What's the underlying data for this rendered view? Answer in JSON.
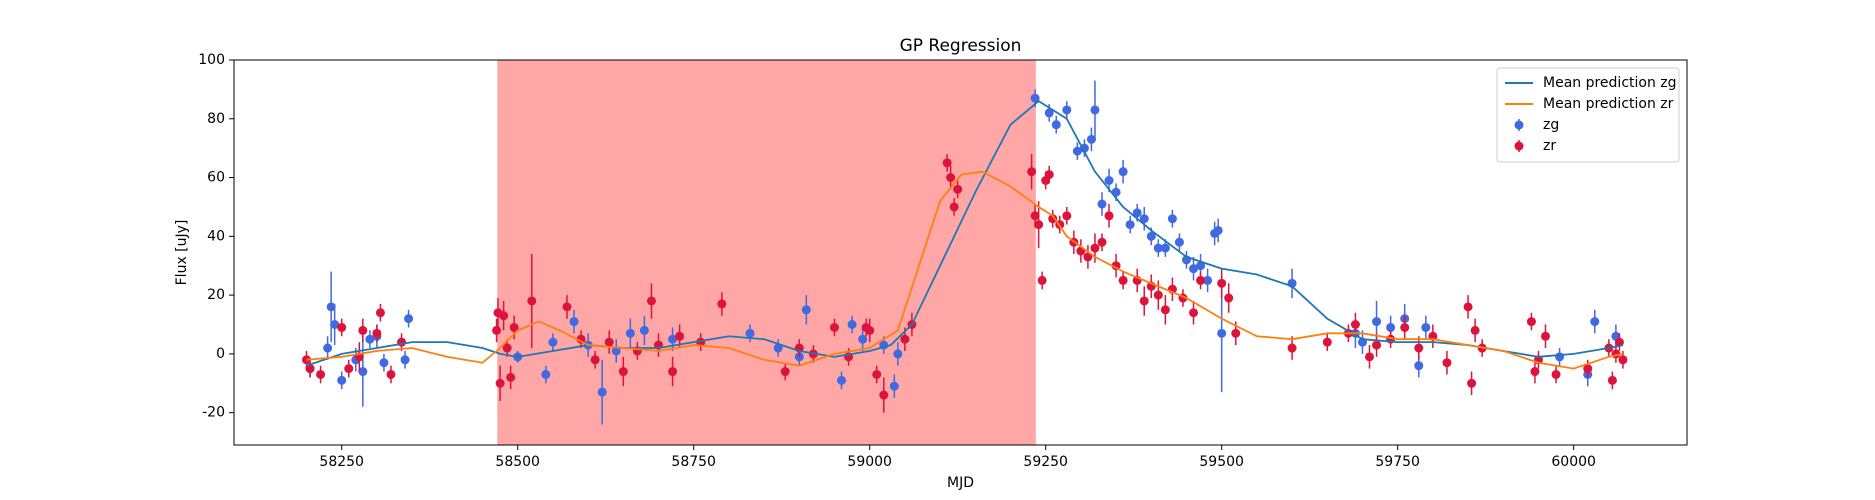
{
  "chart_data": {
    "type": "gp_regression",
    "title": "GP Regression",
    "x_label": "MJD",
    "y_label": "Flux [uJy]",
    "xlim": [
      58097,
      60161
    ],
    "ylim": [
      -31,
      100
    ],
    "xticks": [
      58250,
      58500,
      58750,
      59000,
      59250,
      59500,
      59750,
      60000
    ],
    "yticks": [
      -20,
      0,
      20,
      40,
      60,
      80,
      100
    ],
    "legend": "upper right",
    "shaded_region": {
      "x": [
        58471,
        59236
      ],
      "color": "#ff0000",
      "opacity": 0.35
    },
    "series": [
      {
        "name": "Mean prediction zg",
        "type": "line",
        "color": "#1f77b4",
        "x": [
          58200,
          58250,
          58300,
          58350,
          58400,
          58450,
          58475,
          58500,
          58550,
          58600,
          58650,
          58700,
          58750,
          58800,
          58850,
          58900,
          58950,
          59000,
          59030,
          59060,
          59100,
          59150,
          59200,
          59240,
          59280,
          59320,
          59360,
          59400,
          59450,
          59500,
          59550,
          59600,
          59650,
          59700,
          59750,
          59800,
          59850,
          59900,
          59950,
          60000,
          60050,
          60070
        ],
        "values": [
          -4,
          0,
          2,
          4,
          4,
          2,
          0,
          -1,
          1,
          3,
          2,
          2,
          4,
          6,
          5,
          1,
          -1,
          1,
          3,
          10,
          30,
          55,
          78,
          86,
          80,
          62,
          50,
          42,
          33,
          29,
          27,
          23,
          12,
          5,
          4,
          4,
          3,
          1,
          -1,
          0,
          2,
          3
        ]
      },
      {
        "name": "Mean prediction zr",
        "type": "line",
        "color": "#ff7f0e",
        "x": [
          58200,
          58250,
          58300,
          58350,
          58400,
          58450,
          58475,
          58500,
          58530,
          58560,
          58600,
          58650,
          58700,
          58750,
          58800,
          58850,
          58900,
          58950,
          59000,
          59040,
          59070,
          59100,
          59130,
          59160,
          59200,
          59240,
          59260,
          59280,
          59320,
          59360,
          59400,
          59450,
          59500,
          59550,
          59600,
          59650,
          59700,
          59750,
          59800,
          59850,
          59900,
          59950,
          60000,
          60050,
          60070
        ],
        "values": [
          -2,
          -1,
          1,
          2,
          -1,
          -3,
          2,
          8,
          11,
          8,
          3,
          2,
          1,
          3,
          2,
          -2,
          -4,
          0,
          2,
          8,
          30,
          52,
          61,
          62,
          57,
          50,
          47,
          40,
          33,
          28,
          24,
          19,
          12,
          6,
          5,
          7,
          7,
          5,
          5,
          3,
          1,
          -3,
          -5,
          -1,
          0
        ]
      },
      {
        "name": "zg",
        "type": "errorbar",
        "color": "#4169e1",
        "x": [
          58205,
          58230,
          58235,
          58240,
          58250,
          58270,
          58280,
          58290,
          58300,
          58310,
          58340,
          58345,
          58500,
          58540,
          58550,
          58580,
          58600,
          58620,
          58640,
          58660,
          58680,
          58720,
          58830,
          58870,
          58900,
          58910,
          58960,
          58975,
          58990,
          59020,
          59035,
          59040,
          59235,
          59255,
          59265,
          59280,
          59295,
          59305,
          59315,
          59320,
          59330,
          59340,
          59350,
          59360,
          59370,
          59380,
          59390,
          59400,
          59410,
          59420,
          59430,
          59440,
          59450,
          59460,
          59470,
          59480,
          59490,
          59495,
          59500,
          59600,
          59690,
          59700,
          59720,
          59740,
          59760,
          59780,
          59790,
          59980,
          60020,
          60030,
          60060
        ],
        "values": [
          -5,
          2,
          16,
          10,
          -9,
          -2,
          -6,
          5,
          6,
          -3,
          -2,
          12,
          -1,
          -7,
          4,
          11,
          3,
          -13,
          1,
          7,
          8,
          5,
          7,
          2,
          -1,
          15,
          -9,
          10,
          5,
          3,
          -11,
          0,
          87,
          82,
          78,
          83,
          69,
          70,
          73,
          83,
          51,
          59,
          55,
          62,
          44,
          48,
          46,
          40,
          36,
          36,
          46,
          38,
          32,
          29,
          30,
          25,
          41,
          42,
          7,
          24,
          7,
          4,
          11,
          9,
          12,
          -4,
          9,
          -1,
          -7,
          11,
          6
        ],
        "errors": [
          3,
          4,
          12,
          7,
          3,
          4,
          12,
          3,
          4,
          3,
          3,
          3,
          2,
          3,
          3,
          4,
          4,
          11,
          4,
          5,
          5,
          4,
          3,
          3,
          3,
          5,
          3,
          3,
          4,
          3,
          4,
          4,
          3,
          3,
          3,
          3,
          3,
          3,
          4,
          10,
          4,
          4,
          3,
          4,
          3,
          3,
          4,
          3,
          3,
          3,
          3,
          3,
          3,
          4,
          4,
          4,
          4,
          4,
          20,
          5,
          5,
          4,
          7,
          4,
          5,
          4,
          4,
          3,
          4,
          4,
          4
        ]
      },
      {
        "name": "zr",
        "type": "errorbar",
        "color": "#dc143c",
        "x": [
          58200,
          58205,
          58220,
          58250,
          58260,
          58275,
          58280,
          58300,
          58305,
          58320,
          58335,
          58470,
          58472,
          58475,
          58480,
          58485,
          58490,
          58495,
          58520,
          58570,
          58590,
          58610,
          58630,
          58650,
          58670,
          58690,
          58700,
          58720,
          58730,
          58760,
          58790,
          58880,
          58900,
          58920,
          58950,
          58970,
          58995,
          59000,
          59010,
          59020,
          59050,
          59060,
          59110,
          59115,
          59120,
          59125,
          59230,
          59235,
          59240,
          59245,
          59250,
          59255,
          59260,
          59270,
          59280,
          59290,
          59300,
          59310,
          59320,
          59330,
          59340,
          59350,
          59360,
          59380,
          59390,
          59400,
          59410,
          59420,
          59430,
          59445,
          59460,
          59470,
          59500,
          59510,
          59520,
          59600,
          59650,
          59680,
          59690,
          59710,
          59720,
          59740,
          59760,
          59780,
          59800,
          59820,
          59850,
          59855,
          59860,
          59870,
          59940,
          59945,
          59950,
          59960,
          59975,
          60020,
          60050,
          60055,
          60060,
          60065,
          60070
        ],
        "values": [
          -2,
          -5,
          -7,
          9,
          -5,
          -1,
          8,
          7,
          14,
          -7,
          4,
          8,
          14,
          -10,
          13,
          2,
          -8,
          9,
          18,
          16,
          5,
          -2,
          4,
          -6,
          1,
          18,
          3,
          -6,
          6,
          4,
          17,
          -6,
          2,
          0,
          9,
          -1,
          9,
          8,
          -7,
          -14,
          5,
          10,
          65,
          60,
          50,
          56,
          62,
          47,
          44,
          25,
          59,
          61,
          46,
          44,
          47,
          38,
          35,
          33,
          36,
          38,
          47,
          30,
          25,
          25,
          18,
          23,
          20,
          15,
          22,
          19,
          14,
          25,
          24,
          19,
          7,
          2,
          4,
          7,
          10,
          -1,
          3,
          5,
          9,
          2,
          6,
          -3,
          16,
          -10,
          8,
          2,
          11,
          -6,
          -2,
          6,
          -7,
          -5,
          2,
          -9,
          0,
          4,
          -2
        ],
        "errors": [
          3,
          3,
          3,
          3,
          3,
          5,
          4,
          3,
          3,
          3,
          3,
          4,
          5,
          6,
          5,
          3,
          4,
          4,
          16,
          4,
          3,
          3,
          4,
          5,
          3,
          6,
          4,
          5,
          4,
          3,
          4,
          3,
          3,
          3,
          3,
          3,
          3,
          4,
          3,
          6,
          4,
          4,
          3,
          4,
          3,
          3,
          6,
          4,
          8,
          3,
          3,
          3,
          3,
          3,
          3,
          4,
          4,
          4,
          5,
          3,
          4,
          4,
          3,
          4,
          5,
          4,
          5,
          5,
          4,
          3,
          4,
          3,
          5,
          5,
          4,
          4,
          3,
          3,
          4,
          4,
          4,
          3,
          4,
          4,
          4,
          4,
          4,
          4,
          4,
          3,
          3,
          4,
          3,
          4,
          3,
          3,
          3,
          3,
          3,
          3,
          3
        ]
      }
    ]
  }
}
